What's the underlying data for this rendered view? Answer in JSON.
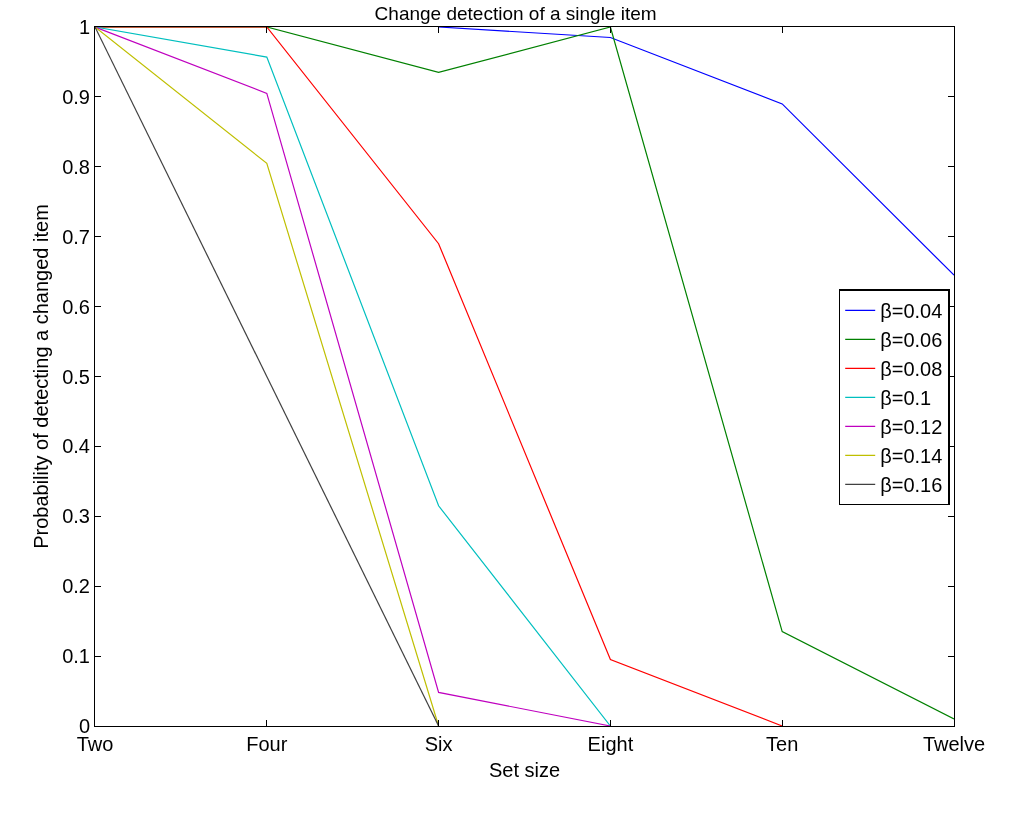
{
  "chart_data": {
    "type": "line",
    "title": "Change detection of a single item",
    "xlabel": "Set size",
    "ylabel": "Probability of detecting a changed item",
    "categories": [
      "Two",
      "Four",
      "Six",
      "Eight",
      "Ten",
      "Twelve"
    ],
    "series": [
      {
        "name": "β=0.04",
        "color": "#0000ff",
        "values": [
          null,
          null,
          1,
          0.985,
          0.89,
          0.645
        ]
      },
      {
        "name": "β=0.06",
        "color": "#008000",
        "values": [
          1,
          1,
          0.935,
          1,
          0.135,
          0.01
        ]
      },
      {
        "name": "β=0.08",
        "color": "#ff0000",
        "values": [
          1,
          1,
          0.69,
          0.095,
          0,
          null
        ]
      },
      {
        "name": "β=0.1",
        "color": "#00bfbf",
        "values": [
          1,
          0.957,
          0.315,
          0,
          null,
          null
        ]
      },
      {
        "name": "β=0.12",
        "color": "#bf00bf",
        "values": [
          1,
          0.905,
          0.048,
          0,
          null,
          null
        ]
      },
      {
        "name": "β=0.14",
        "color": "#bfbf00",
        "values": [
          1,
          0.805,
          0,
          null,
          null,
          null
        ]
      },
      {
        "name": "β=0.16",
        "color": "#404040",
        "values": [
          1,
          0.5,
          0,
          null,
          null,
          null
        ]
      }
    ],
    "ylim": [
      0,
      1
    ],
    "yticks": [
      0,
      0.1,
      0.2,
      0.3,
      0.4,
      0.5,
      0.6,
      0.7,
      0.8,
      0.9,
      1
    ],
    "legend": "right",
    "marker": "none",
    "line_style": "solid"
  }
}
